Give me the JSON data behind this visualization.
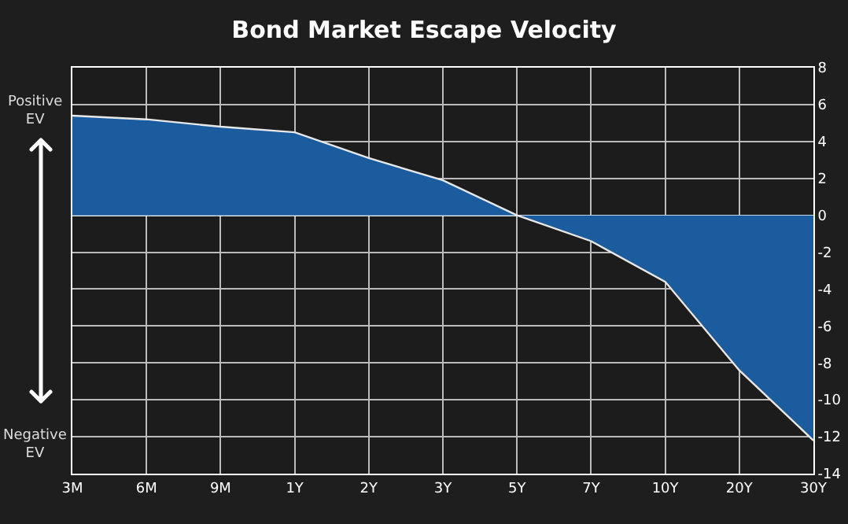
{
  "chart_data": {
    "type": "area",
    "title": "Bond Market Escape Velocity",
    "categories": [
      "3M",
      "6M",
      "9M",
      "1Y",
      "2Y",
      "3Y",
      "5Y",
      "7Y",
      "10Y",
      "20Y",
      "30Y"
    ],
    "values": [
      5.4,
      5.2,
      4.8,
      4.5,
      3.1,
      1.9,
      0,
      -1.4,
      -3.6,
      -8.4,
      -12.2
    ],
    "color": "#1a5c9e",
    "ylim": [
      -14,
      8
    ],
    "yticks": [
      -14,
      -12,
      -10,
      -8,
      -6,
      -4,
      -2,
      0,
      2,
      4,
      6,
      8
    ],
    "grid": true,
    "annotations": [
      "Positive EV",
      "Negative EV"
    ]
  }
}
